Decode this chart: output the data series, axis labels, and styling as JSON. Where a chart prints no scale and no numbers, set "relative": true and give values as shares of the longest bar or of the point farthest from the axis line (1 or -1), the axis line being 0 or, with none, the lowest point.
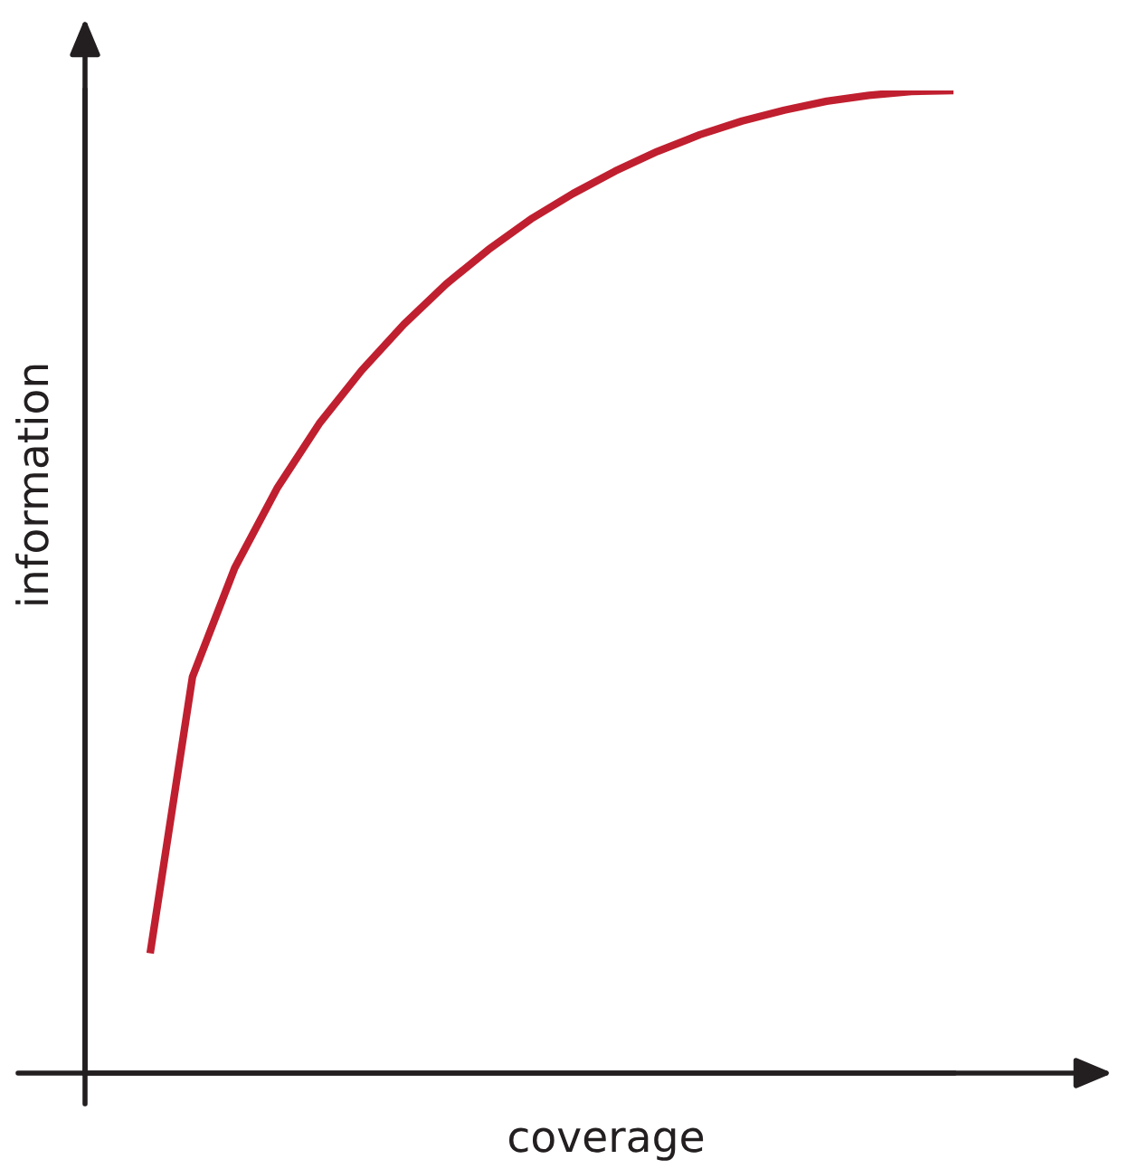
{
  "chart_data": {
    "type": "line",
    "relative": true,
    "xlabel": "coverage",
    "ylabel": "information",
    "categories": [
      null,
      null,
      null,
      null,
      null,
      null,
      null,
      null,
      null,
      null,
      null,
      null,
      null,
      null,
      null,
      null,
      null,
      null,
      null,
      null
    ],
    "series": [
      {
        "color": "#c01f2f",
        "values": [
          0.122,
          0.403,
          0.514,
          0.595,
          0.661,
          0.715,
          0.762,
          0.803,
          0.838,
          0.869,
          0.895,
          0.918,
          0.938,
          0.955,
          0.969,
          0.98,
          0.989,
          0.995,
          0.999,
          1.0
        ]
      }
    ],
    "marker": "none",
    "line_style": "solid"
  }
}
